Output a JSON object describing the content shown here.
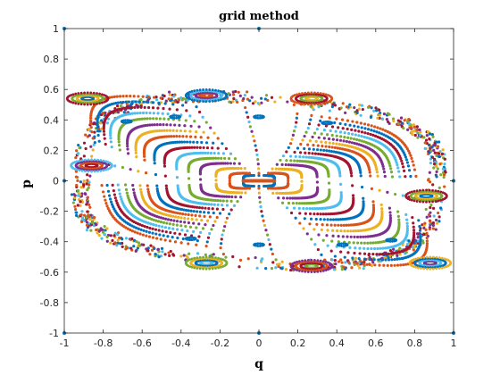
{
  "chart_data": {
    "type": "scatter",
    "title": "grid method",
    "xlabel": "q",
    "ylabel": "p",
    "xlim": [
      -1,
      1
    ],
    "ylim": [
      -1,
      1
    ],
    "xticks": [
      -1,
      -0.8,
      -0.6,
      -0.4,
      -0.2,
      0,
      0.2,
      0.4,
      0.6,
      0.8,
      1
    ],
    "yticks": [
      -1,
      -0.8,
      -0.6,
      -0.4,
      -0.2,
      0,
      0.2,
      0.4,
      0.6,
      0.8,
      1
    ],
    "xticklabels": [
      "-1",
      "-0.8",
      "-0.6",
      "-0.4",
      "-0.2",
      "0",
      "0.2",
      "0.4",
      "0.6",
      "0.8",
      "1"
    ],
    "yticklabels": [
      "-1",
      "-0.8",
      "-0.6",
      "-0.4",
      "-0.2",
      "0",
      "0.2",
      "0.4",
      "0.6",
      "0.8",
      "1"
    ],
    "grid": false,
    "legend": "none",
    "palette": [
      "#0072BD",
      "#D95319",
      "#EDB120",
      "#7E2F8E",
      "#77AC30",
      "#4DBEEE",
      "#A2142F"
    ],
    "orbits": [
      {
        "kind": "invariant_curve",
        "a": 0.08,
        "b": 0.035,
        "shear": 0.0
      },
      {
        "kind": "invariant_curve",
        "a": 0.15,
        "b": 0.05,
        "shear": 0.0
      },
      {
        "kind": "invariant_curve",
        "a": 0.22,
        "b": 0.08,
        "shear": 0.03
      },
      {
        "kind": "invariant_curve",
        "a": 0.3,
        "b": 0.11,
        "shear": 0.05
      },
      {
        "kind": "invariant_curve",
        "a": 0.36,
        "b": 0.14,
        "shear": 0.07
      },
      {
        "kind": "invariant_curve",
        "a": 0.42,
        "b": 0.17,
        "shear": 0.09
      },
      {
        "kind": "invariant_curve",
        "a": 0.48,
        "b": 0.2,
        "shear": 0.11
      },
      {
        "kind": "invariant_curve",
        "a": 0.53,
        "b": 0.23,
        "shear": 0.13
      },
      {
        "kind": "invariant_curve",
        "a": 0.58,
        "b": 0.26,
        "shear": 0.15
      },
      {
        "kind": "invariant_curve",
        "a": 0.62,
        "b": 0.29,
        "shear": 0.17
      },
      {
        "kind": "invariant_curve",
        "a": 0.66,
        "b": 0.32,
        "shear": 0.19
      },
      {
        "kind": "invariant_curve",
        "a": 0.7,
        "b": 0.35,
        "shear": 0.21
      },
      {
        "kind": "invariant_curve",
        "a": 0.74,
        "b": 0.38,
        "shear": 0.22
      },
      {
        "kind": "invariant_curve",
        "a": 0.77,
        "b": 0.41,
        "shear": 0.23
      },
      {
        "kind": "invariant_curve",
        "a": 0.8,
        "b": 0.44,
        "shear": 0.24
      },
      {
        "kind": "invariant_curve",
        "a": 0.83,
        "b": 0.47,
        "shear": 0.25
      }
    ],
    "islands": [
      {
        "q": -0.88,
        "p": 0.54
      },
      {
        "q": -0.27,
        "p": 0.56
      },
      {
        "q": 0.27,
        "p": 0.54
      },
      {
        "q": 0.88,
        "p": -0.54
      },
      {
        "q": 0.27,
        "p": -0.56
      },
      {
        "q": -0.27,
        "p": -0.54
      },
      {
        "q": -0.86,
        "p": 0.1
      },
      {
        "q": 0.86,
        "p": -0.1
      }
    ],
    "small_chain": [
      {
        "q": -0.68,
        "p": 0.39
      },
      {
        "q": -0.43,
        "p": 0.42
      },
      {
        "q": 0.0,
        "p": 0.42
      },
      {
        "q": 0.35,
        "p": 0.38
      },
      {
        "q": 0.68,
        "p": -0.39
      },
      {
        "q": 0.43,
        "p": -0.42
      },
      {
        "q": 0.0,
        "p": -0.42
      },
      {
        "q": -0.35,
        "p": -0.38
      }
    ],
    "stray_points": [
      {
        "q": -1,
        "p": 1
      },
      {
        "q": 0,
        "p": 1
      },
      {
        "q": -1,
        "p": 0
      },
      {
        "q": 1,
        "p": 0
      },
      {
        "q": -1,
        "p": -1
      },
      {
        "q": 0,
        "p": -1
      },
      {
        "q": 1,
        "p": -1
      }
    ]
  }
}
